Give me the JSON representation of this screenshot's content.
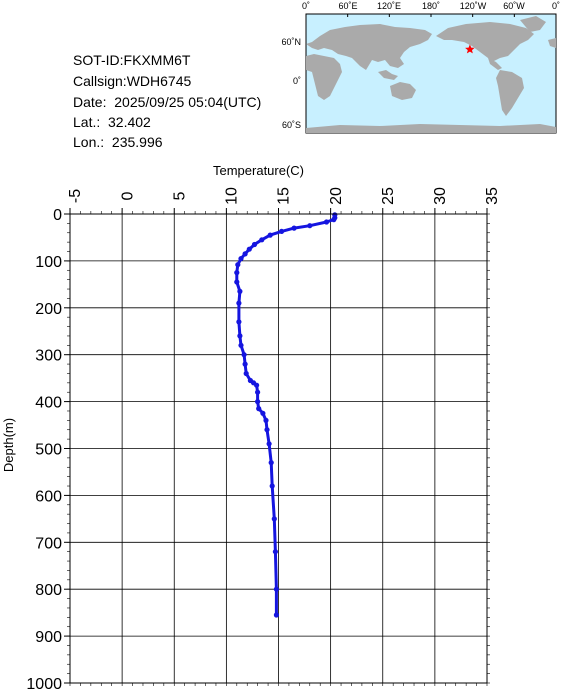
{
  "info": {
    "sot_id": "SOT-ID:FKXMM6T",
    "callsign": "Callsign:WDH6745",
    "date": "Date:  2025/09/25 05:04(UTC)",
    "lat": "Lat.:  32.402",
    "lon": "Lon.:  235.996"
  },
  "map": {
    "lon_labels": [
      "0˚",
      "60˚E",
      "120˚E",
      "180˚",
      "120˚W",
      "60˚W",
      "0˚"
    ],
    "lat_labels": [
      "60˚N",
      "0˚",
      "60˚S"
    ],
    "ocean_color": "#c8f0ff",
    "land_color": "#aaaaaa",
    "marker": {
      "lat": 32.402,
      "lon": 235.996,
      "color": "#ff0000",
      "icon": "star-icon"
    }
  },
  "chart_data": {
    "type": "line",
    "title": "",
    "xlabel": "Temperature(C)",
    "ylabel": "Depth(m)",
    "xlim": [
      -5,
      35
    ],
    "ylim": [
      0,
      1000
    ],
    "y_inverted": true,
    "x_ticks": [
      -5,
      0,
      5,
      10,
      15,
      20,
      25,
      30,
      35
    ],
    "y_ticks": [
      0,
      100,
      200,
      300,
      400,
      500,
      600,
      700,
      800,
      900,
      1000
    ],
    "grid": true,
    "series": [
      {
        "color": "#1515e0",
        "points": [
          [
            20.4,
            2
          ],
          [
            20.4,
            8
          ],
          [
            20.3,
            12
          ],
          [
            19.6,
            17
          ],
          [
            18.0,
            25
          ],
          [
            16.5,
            30
          ],
          [
            15.3,
            37
          ],
          [
            14.2,
            45
          ],
          [
            13.4,
            55
          ],
          [
            12.7,
            65
          ],
          [
            12.2,
            75
          ],
          [
            11.8,
            85
          ],
          [
            11.4,
            95
          ],
          [
            11.1,
            108
          ],
          [
            11.0,
            125
          ],
          [
            11.0,
            145
          ],
          [
            11.3,
            165
          ],
          [
            11.2,
            190
          ],
          [
            11.2,
            230
          ],
          [
            11.3,
            260
          ],
          [
            11.4,
            280
          ],
          [
            11.7,
            300
          ],
          [
            11.8,
            320
          ],
          [
            11.9,
            340
          ],
          [
            12.3,
            355
          ],
          [
            12.6,
            360
          ],
          [
            12.9,
            365
          ],
          [
            13.0,
            380
          ],
          [
            13.0,
            400
          ],
          [
            13.1,
            415
          ],
          [
            13.5,
            425
          ],
          [
            13.8,
            440
          ],
          [
            13.9,
            460
          ],
          [
            14.1,
            490
          ],
          [
            14.3,
            530
          ],
          [
            14.4,
            580
          ],
          [
            14.6,
            650
          ],
          [
            14.7,
            720
          ],
          [
            14.8,
            800
          ],
          [
            14.8,
            855
          ]
        ]
      }
    ]
  }
}
